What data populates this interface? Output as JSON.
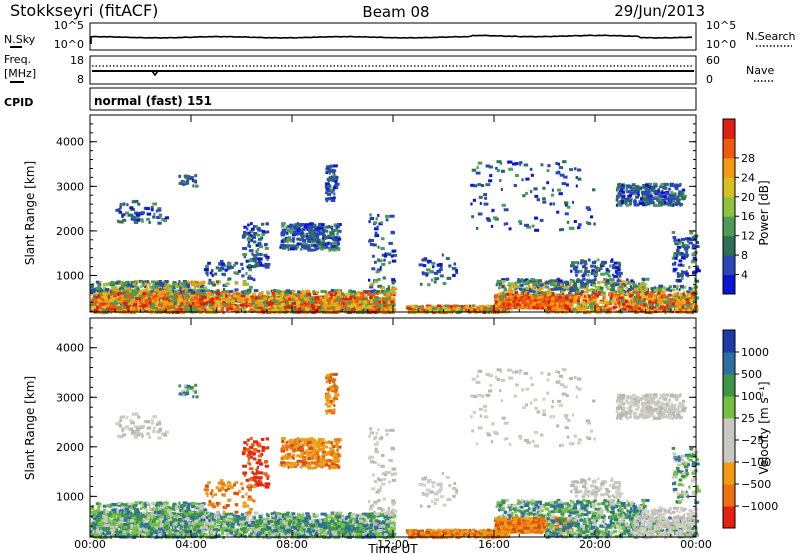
{
  "header": {
    "station": "Stokkseyri (fitACF)",
    "beam": "Beam 08",
    "date": "29/Jun/2013"
  },
  "noise_panel": {
    "left_label": "N.Sky",
    "right_label": "N.Search",
    "left_ticks": [
      "10^5",
      "10^0"
    ],
    "right_ticks": [
      "10^5",
      "10^0"
    ]
  },
  "freq_panel": {
    "left_label_1": "Freq.",
    "left_label_2": "[MHz]",
    "right_label": "Nave",
    "left_ticks": [
      "18",
      "8"
    ],
    "right_ticks": [
      "60",
      "0"
    ]
  },
  "cpid": {
    "label": "CPID",
    "text": "normal (fast) 151"
  },
  "chart_data": [
    {
      "type": "heatmap",
      "title": "",
      "ylabel": "Slant Range [km]",
      "xlabel": "",
      "xlim": [
        "00:00",
        "24:00"
      ],
      "ylim": [
        180,
        4600
      ],
      "y_ticks": [
        1000,
        2000,
        3000,
        4000
      ],
      "colorbar": {
        "label": "Power [dB]",
        "ticks": [
          "4",
          "8",
          "12",
          "16",
          "20",
          "24",
          "28"
        ],
        "colors": [
          "#0a14d2",
          "#2a47b8",
          "#2f6e58",
          "#4e9a58",
          "#8fc240",
          "#d8c020",
          "#f29a10",
          "#ee5a10",
          "#dd2010"
        ]
      }
    },
    {
      "type": "heatmap",
      "title": "",
      "ylabel": "Slant Range [km]",
      "xlabel": "Time UT",
      "x_ticks": [
        "00:00",
        "04:00",
        "08:00",
        "12:00",
        "16:00",
        "20:00",
        "00:00"
      ],
      "xlim": [
        "00:00",
        "24:00"
      ],
      "ylim": [
        180,
        4600
      ],
      "y_ticks": [
        1000,
        2000,
        3000,
        4000
      ],
      "colorbar": {
        "label": "Velocity [m s⁻¹]",
        "ticks": [
          "1000",
          "500",
          "100",
          "25",
          "−25",
          "−100",
          "−500",
          "−1000"
        ],
        "colors": [
          "#1c3aa8",
          "#2d6fa0",
          "#3c9646",
          "#74c040",
          "#c8c8c0",
          "#c8c8c0",
          "#f29a10",
          "#ef7010",
          "#e52010"
        ]
      }
    }
  ]
}
